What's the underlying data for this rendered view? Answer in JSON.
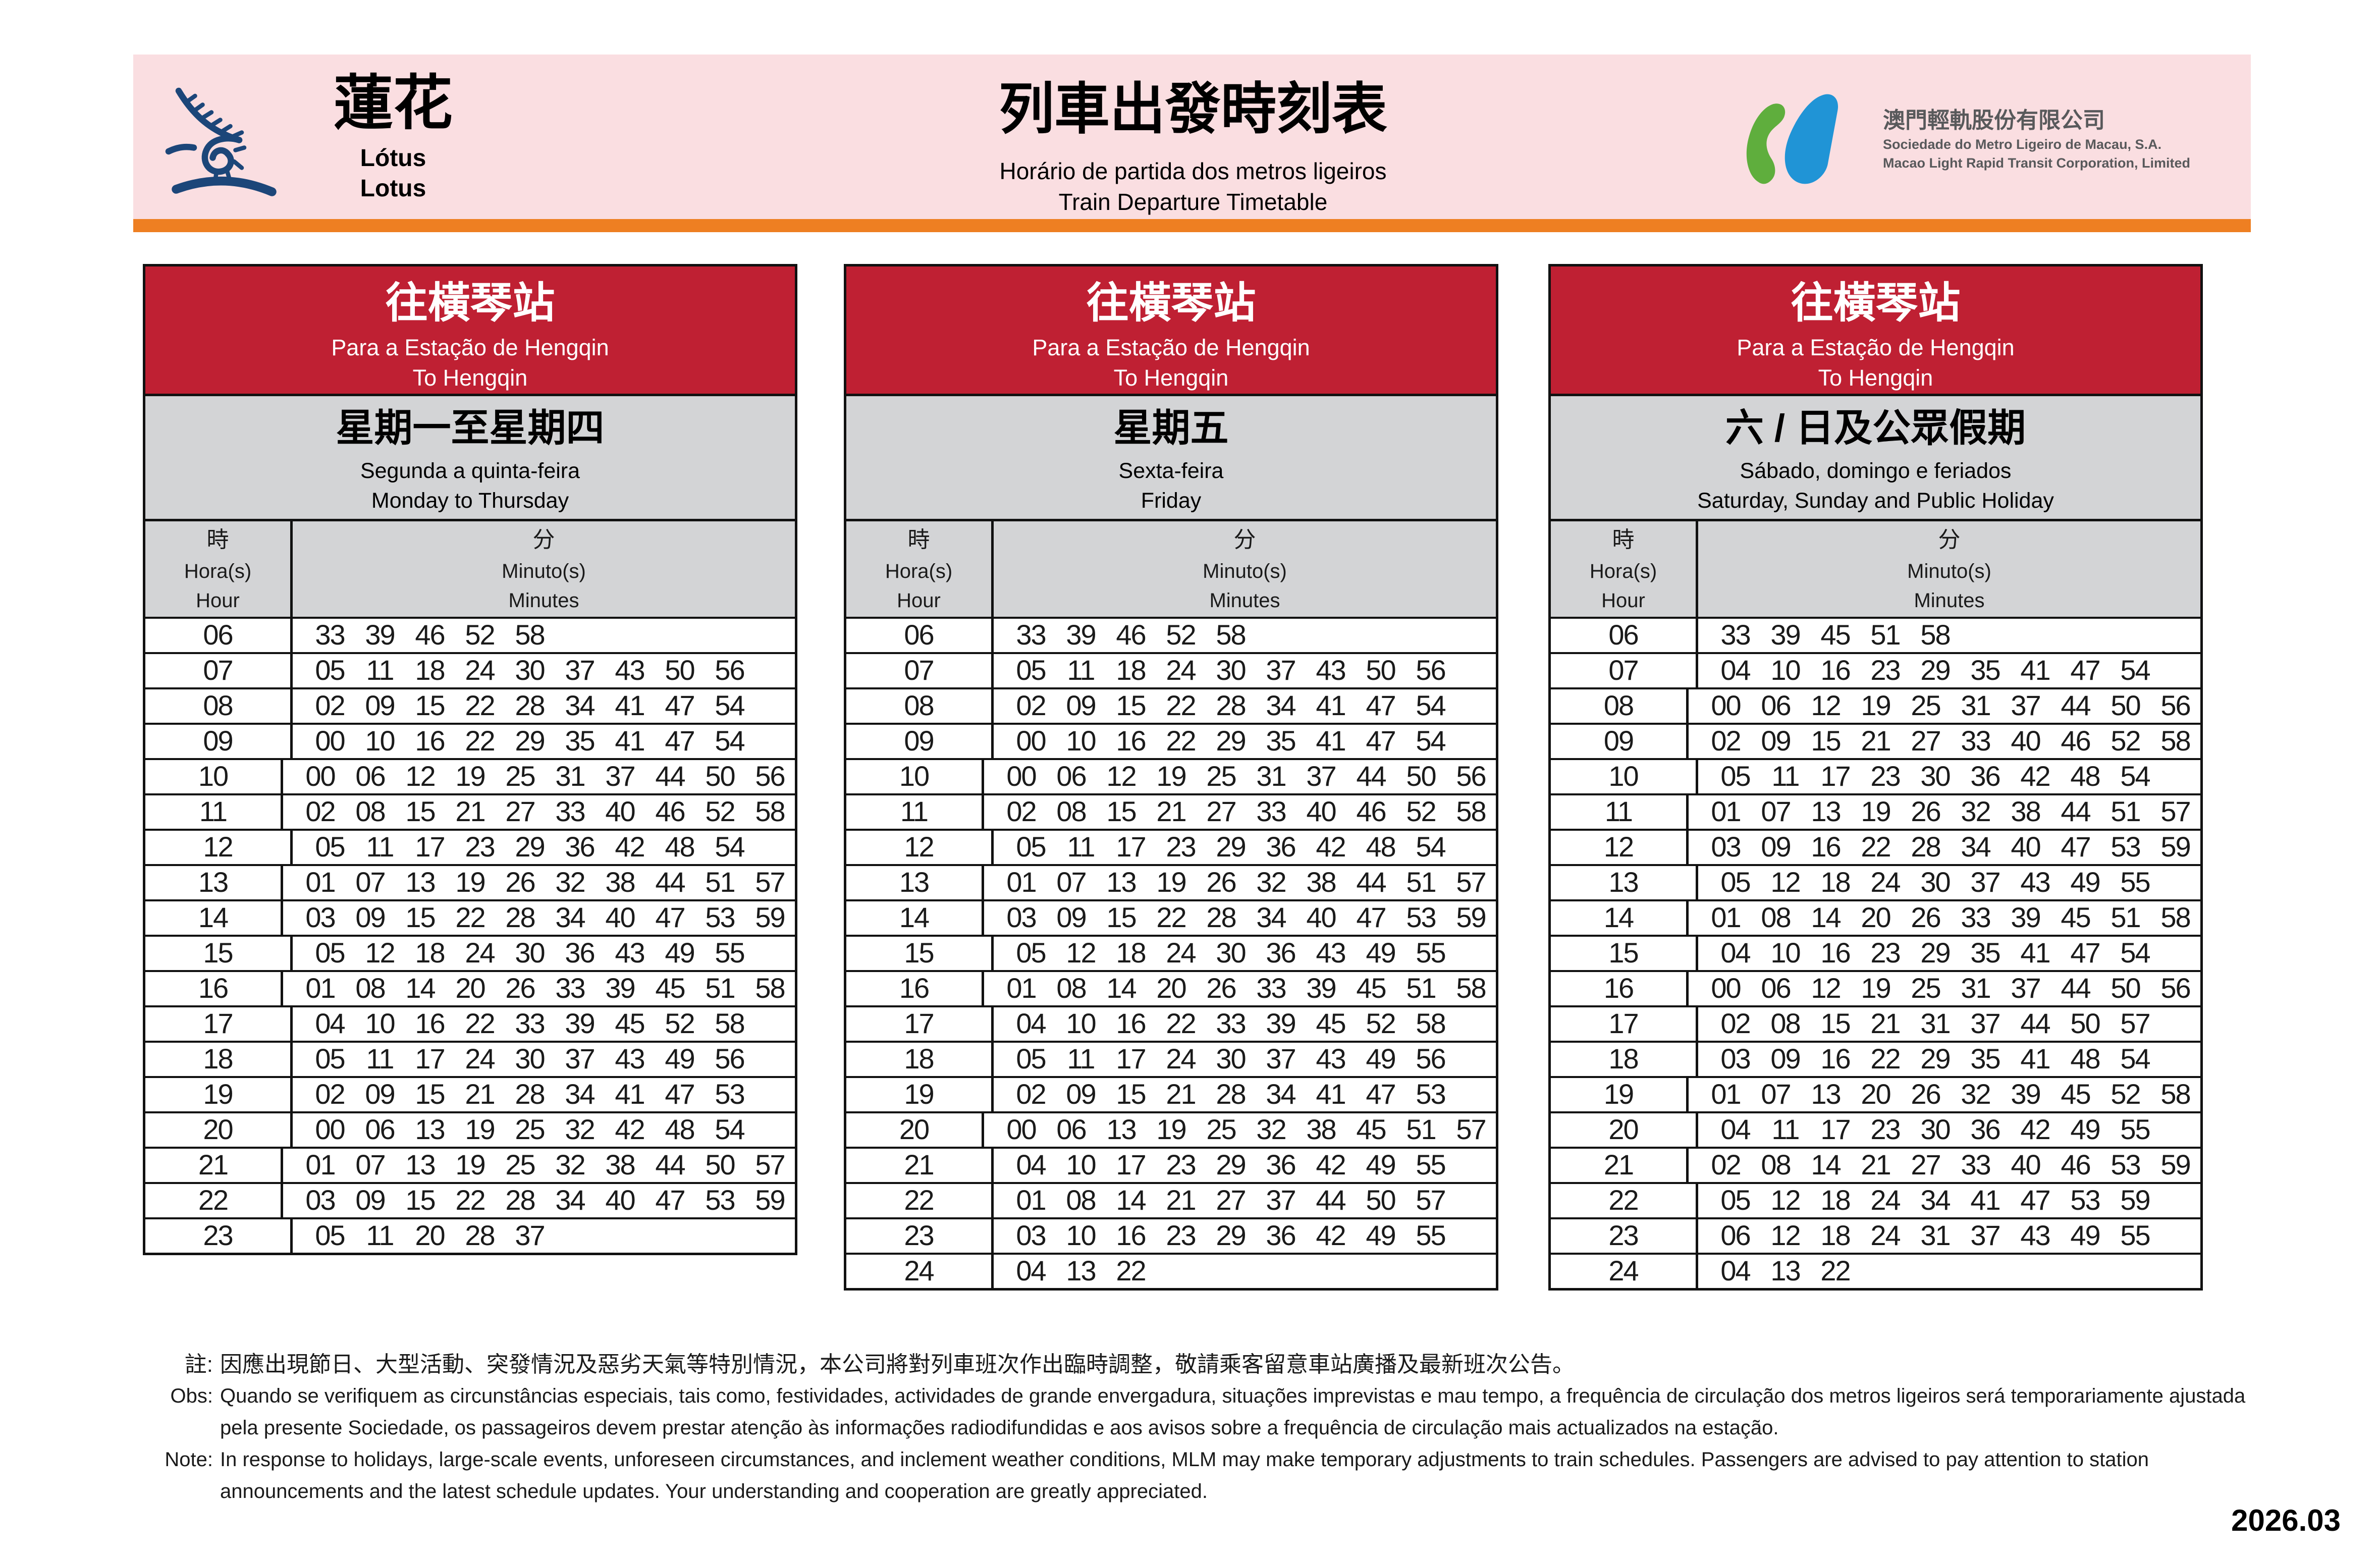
{
  "colors": {
    "pink": "#fadee1",
    "orange": "#ee7f22",
    "red": "#bf2033",
    "gray": "#d3d4d6",
    "navy": "#1c4679",
    "logo_green": "#5fae3d",
    "logo_blue": "#2094d6"
  },
  "header": {
    "station": {
      "zh": "蓮花",
      "pt": "Lótus",
      "en": "Lotus"
    },
    "title": {
      "zh": "列車出發時刻表",
      "pt": "Horário de partida dos metros ligeiros",
      "en": "Train Departure Timetable"
    },
    "company": {
      "zh": "澳門輕軌股份有限公司",
      "pt": "Sociedade do Metro Ligeiro de Macau, S.A.",
      "en": "Macao Light Rapid Transit Corporation, Limited"
    }
  },
  "tables": [
    {
      "destination": {
        "zh": "往橫琴站",
        "pt": "Para a Estação de Hengqin",
        "en": "To Hengqin"
      },
      "days": {
        "zh": "星期一至星期四",
        "pt": "Segunda a quinta-feira",
        "en": "Monday to Thursday"
      },
      "columns": {
        "hour": {
          "zh": "時",
          "pt": "Hora(s)",
          "en": "Hour"
        },
        "minutes": {
          "zh": "分",
          "pt": "Minuto(s)",
          "en": "Minutes"
        }
      },
      "rows": [
        {
          "hour": "06",
          "minutes": [
            "33",
            "39",
            "46",
            "52",
            "58"
          ]
        },
        {
          "hour": "07",
          "minutes": [
            "05",
            "11",
            "18",
            "24",
            "30",
            "37",
            "43",
            "50",
            "56"
          ]
        },
        {
          "hour": "08",
          "minutes": [
            "02",
            "09",
            "15",
            "22",
            "28",
            "34",
            "41",
            "47",
            "54"
          ]
        },
        {
          "hour": "09",
          "minutes": [
            "00",
            "10",
            "16",
            "22",
            "29",
            "35",
            "41",
            "47",
            "54"
          ]
        },
        {
          "hour": "10",
          "minutes": [
            "00",
            "06",
            "12",
            "19",
            "25",
            "31",
            "37",
            "44",
            "50",
            "56"
          ]
        },
        {
          "hour": "11",
          "minutes": [
            "02",
            "08",
            "15",
            "21",
            "27",
            "33",
            "40",
            "46",
            "52",
            "58"
          ]
        },
        {
          "hour": "12",
          "minutes": [
            "05",
            "11",
            "17",
            "23",
            "29",
            "36",
            "42",
            "48",
            "54"
          ]
        },
        {
          "hour": "13",
          "minutes": [
            "01",
            "07",
            "13",
            "19",
            "26",
            "32",
            "38",
            "44",
            "51",
            "57"
          ]
        },
        {
          "hour": "14",
          "minutes": [
            "03",
            "09",
            "15",
            "22",
            "28",
            "34",
            "40",
            "47",
            "53",
            "59"
          ]
        },
        {
          "hour": "15",
          "minutes": [
            "05",
            "12",
            "18",
            "24",
            "30",
            "36",
            "43",
            "49",
            "55"
          ]
        },
        {
          "hour": "16",
          "minutes": [
            "01",
            "08",
            "14",
            "20",
            "26",
            "33",
            "39",
            "45",
            "51",
            "58"
          ]
        },
        {
          "hour": "17",
          "minutes": [
            "04",
            "10",
            "16",
            "22",
            "33",
            "39",
            "45",
            "52",
            "58"
          ]
        },
        {
          "hour": "18",
          "minutes": [
            "05",
            "11",
            "17",
            "24",
            "30",
            "37",
            "43",
            "49",
            "56"
          ]
        },
        {
          "hour": "19",
          "minutes": [
            "02",
            "09",
            "15",
            "21",
            "28",
            "34",
            "41",
            "47",
            "53"
          ]
        },
        {
          "hour": "20",
          "minutes": [
            "00",
            "06",
            "13",
            "19",
            "25",
            "32",
            "42",
            "48",
            "54"
          ]
        },
        {
          "hour": "21",
          "minutes": [
            "01",
            "07",
            "13",
            "19",
            "25",
            "32",
            "38",
            "44",
            "50",
            "57"
          ]
        },
        {
          "hour": "22",
          "minutes": [
            "03",
            "09",
            "15",
            "22",
            "28",
            "34",
            "40",
            "47",
            "53",
            "59"
          ]
        },
        {
          "hour": "23",
          "minutes": [
            "05",
            "11",
            "20",
            "28",
            "37"
          ]
        }
      ]
    },
    {
      "destination": {
        "zh": "往橫琴站",
        "pt": "Para a Estação de Hengqin",
        "en": "To Hengqin"
      },
      "days": {
        "zh": "星期五",
        "pt": "Sexta-feira",
        "en": "Friday"
      },
      "columns": {
        "hour": {
          "zh": "時",
          "pt": "Hora(s)",
          "en": "Hour"
        },
        "minutes": {
          "zh": "分",
          "pt": "Minuto(s)",
          "en": "Minutes"
        }
      },
      "rows": [
        {
          "hour": "06",
          "minutes": [
            "33",
            "39",
            "46",
            "52",
            "58"
          ]
        },
        {
          "hour": "07",
          "minutes": [
            "05",
            "11",
            "18",
            "24",
            "30",
            "37",
            "43",
            "50",
            "56"
          ]
        },
        {
          "hour": "08",
          "minutes": [
            "02",
            "09",
            "15",
            "22",
            "28",
            "34",
            "41",
            "47",
            "54"
          ]
        },
        {
          "hour": "09",
          "minutes": [
            "00",
            "10",
            "16",
            "22",
            "29",
            "35",
            "41",
            "47",
            "54"
          ]
        },
        {
          "hour": "10",
          "minutes": [
            "00",
            "06",
            "12",
            "19",
            "25",
            "31",
            "37",
            "44",
            "50",
            "56"
          ]
        },
        {
          "hour": "11",
          "minutes": [
            "02",
            "08",
            "15",
            "21",
            "27",
            "33",
            "40",
            "46",
            "52",
            "58"
          ]
        },
        {
          "hour": "12",
          "minutes": [
            "05",
            "11",
            "17",
            "23",
            "29",
            "36",
            "42",
            "48",
            "54"
          ]
        },
        {
          "hour": "13",
          "minutes": [
            "01",
            "07",
            "13",
            "19",
            "26",
            "32",
            "38",
            "44",
            "51",
            "57"
          ]
        },
        {
          "hour": "14",
          "minutes": [
            "03",
            "09",
            "15",
            "22",
            "28",
            "34",
            "40",
            "47",
            "53",
            "59"
          ]
        },
        {
          "hour": "15",
          "minutes": [
            "05",
            "12",
            "18",
            "24",
            "30",
            "36",
            "43",
            "49",
            "55"
          ]
        },
        {
          "hour": "16",
          "minutes": [
            "01",
            "08",
            "14",
            "20",
            "26",
            "33",
            "39",
            "45",
            "51",
            "58"
          ]
        },
        {
          "hour": "17",
          "minutes": [
            "04",
            "10",
            "16",
            "22",
            "33",
            "39",
            "45",
            "52",
            "58"
          ]
        },
        {
          "hour": "18",
          "minutes": [
            "05",
            "11",
            "17",
            "24",
            "30",
            "37",
            "43",
            "49",
            "56"
          ]
        },
        {
          "hour": "19",
          "minutes": [
            "02",
            "09",
            "15",
            "21",
            "28",
            "34",
            "41",
            "47",
            "53"
          ]
        },
        {
          "hour": "20",
          "minutes": [
            "00",
            "06",
            "13",
            "19",
            "25",
            "32",
            "38",
            "45",
            "51",
            "57"
          ]
        },
        {
          "hour": "21",
          "minutes": [
            "04",
            "10",
            "17",
            "23",
            "29",
            "36",
            "42",
            "49",
            "55"
          ]
        },
        {
          "hour": "22",
          "minutes": [
            "01",
            "08",
            "14",
            "21",
            "27",
            "37",
            "44",
            "50",
            "57"
          ]
        },
        {
          "hour": "23",
          "minutes": [
            "03",
            "10",
            "16",
            "23",
            "29",
            "36",
            "42",
            "49",
            "55"
          ]
        },
        {
          "hour": "24",
          "minutes": [
            "04",
            "13",
            "22"
          ]
        }
      ]
    },
    {
      "destination": {
        "zh": "往橫琴站",
        "pt": "Para a Estação de Hengqin",
        "en": "To Hengqin"
      },
      "days": {
        "zh": "六 / 日及公眾假期",
        "pt": "Sábado, domingo e feriados",
        "en": "Saturday, Sunday and Public Holiday"
      },
      "columns": {
        "hour": {
          "zh": "時",
          "pt": "Hora(s)",
          "en": "Hour"
        },
        "minutes": {
          "zh": "分",
          "pt": "Minuto(s)",
          "en": "Minutes"
        }
      },
      "rows": [
        {
          "hour": "06",
          "minutes": [
            "33",
            "39",
            "45",
            "51",
            "58"
          ]
        },
        {
          "hour": "07",
          "minutes": [
            "04",
            "10",
            "16",
            "23",
            "29",
            "35",
            "41",
            "47",
            "54"
          ]
        },
        {
          "hour": "08",
          "minutes": [
            "00",
            "06",
            "12",
            "19",
            "25",
            "31",
            "37",
            "44",
            "50",
            "56"
          ]
        },
        {
          "hour": "09",
          "minutes": [
            "02",
            "09",
            "15",
            "21",
            "27",
            "33",
            "40",
            "46",
            "52",
            "58"
          ]
        },
        {
          "hour": "10",
          "minutes": [
            "05",
            "11",
            "17",
            "23",
            "30",
            "36",
            "42",
            "48",
            "54"
          ]
        },
        {
          "hour": "11",
          "minutes": [
            "01",
            "07",
            "13",
            "19",
            "26",
            "32",
            "38",
            "44",
            "51",
            "57"
          ]
        },
        {
          "hour": "12",
          "minutes": [
            "03",
            "09",
            "16",
            "22",
            "28",
            "34",
            "40",
            "47",
            "53",
            "59"
          ]
        },
        {
          "hour": "13",
          "minutes": [
            "05",
            "12",
            "18",
            "24",
            "30",
            "37",
            "43",
            "49",
            "55"
          ]
        },
        {
          "hour": "14",
          "minutes": [
            "01",
            "08",
            "14",
            "20",
            "26",
            "33",
            "39",
            "45",
            "51",
            "58"
          ]
        },
        {
          "hour": "15",
          "minutes": [
            "04",
            "10",
            "16",
            "23",
            "29",
            "35",
            "41",
            "47",
            "54"
          ]
        },
        {
          "hour": "16",
          "minutes": [
            "00",
            "06",
            "12",
            "19",
            "25",
            "31",
            "37",
            "44",
            "50",
            "56"
          ]
        },
        {
          "hour": "17",
          "minutes": [
            "02",
            "08",
            "15",
            "21",
            "31",
            "37",
            "44",
            "50",
            "57"
          ]
        },
        {
          "hour": "18",
          "minutes": [
            "03",
            "09",
            "16",
            "22",
            "29",
            "35",
            "41",
            "48",
            "54"
          ]
        },
        {
          "hour": "19",
          "minutes": [
            "01",
            "07",
            "13",
            "20",
            "26",
            "32",
            "39",
            "45",
            "52",
            "58"
          ]
        },
        {
          "hour": "20",
          "minutes": [
            "04",
            "11",
            "17",
            "23",
            "30",
            "36",
            "42",
            "49",
            "55"
          ]
        },
        {
          "hour": "21",
          "minutes": [
            "02",
            "08",
            "14",
            "21",
            "27",
            "33",
            "40",
            "46",
            "53",
            "59"
          ]
        },
        {
          "hour": "22",
          "minutes": [
            "05",
            "12",
            "18",
            "24",
            "34",
            "41",
            "47",
            "53",
            "59"
          ]
        },
        {
          "hour": "23",
          "minutes": [
            "06",
            "12",
            "18",
            "24",
            "31",
            "37",
            "43",
            "49",
            "55"
          ]
        },
        {
          "hour": "24",
          "minutes": [
            "04",
            "13",
            "22"
          ]
        }
      ]
    }
  ],
  "notes": {
    "rows": [
      {
        "label": "註:",
        "lang": "zh",
        "text": "因應出現節日、大型活動、突發情況及惡劣天氣等特別情況，本公司將對列車班次作出臨時調整，敬請乘客留意車站廣播及最新班次公告。"
      },
      {
        "label": "Obs:",
        "lang": "latin",
        "text": "Quando se verifiquem as circunstâncias especiais, tais como, festividades, actividades de grande envergadura, situações imprevistas  e mau tempo, a frequência de circulação dos metros ligeiros será temporariamente ajustada"
      },
      {
        "label": "",
        "lang": "latin",
        "text": "pela presente Sociedade, os passageiros devem prestar atenção às informações radiodifundidas e aos avisos sobre a frequência de circulação mais actualizados na estação."
      },
      {
        "label": "Note:",
        "lang": "latin",
        "text": "In response to holidays, large-scale events, unforeseen circumstances, and inclement weather conditions, MLM may make temporary adjustments to train schedules. Passengers are advised to pay attention to station"
      },
      {
        "label": "",
        "lang": "latin",
        "text": "announcements and the latest schedule updates. Your understanding and cooperation are greatly appreciated."
      }
    ]
  },
  "date_label": "2026.03"
}
